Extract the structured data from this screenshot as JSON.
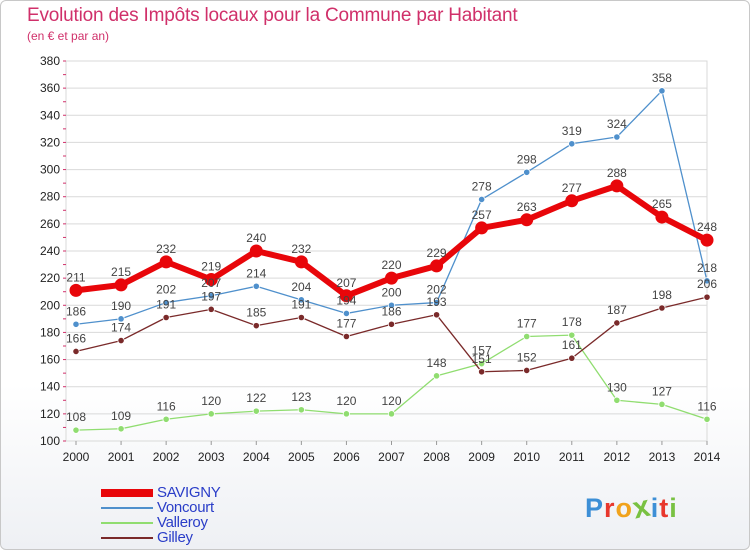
{
  "header": {
    "title": "Evolution des Impôts locaux pour la Commune par Habitant",
    "subtitle": "(en € et par an)"
  },
  "colors": {
    "title": "#d0306a",
    "legend_text": "#2a3dc8",
    "grid": "#d9d9d9",
    "axis_ticks": "#d0306a"
  },
  "chart_data": {
    "type": "line",
    "title": "Evolution des Impôts locaux pour la Commune par Habitant",
    "subtitle": "(en € et par an)",
    "xlabel": "",
    "ylabel": "",
    "x": [
      "2000",
      "2001",
      "2002",
      "2003",
      "2004",
      "2005",
      "2006",
      "2007",
      "2008",
      "2009",
      "2010",
      "2011",
      "2012",
      "2013",
      "2014"
    ],
    "ylim": [
      100,
      380
    ],
    "yticks": [
      100,
      120,
      140,
      160,
      180,
      200,
      220,
      240,
      260,
      280,
      300,
      320,
      340,
      360,
      380
    ],
    "grid": "horizontal",
    "legend_position": "bottom-left",
    "series": [
      {
        "name": "SAVIGNY",
        "color": "#e8060a",
        "values": [
          211,
          215,
          232,
          219,
          240,
          232,
          207,
          220,
          229,
          257,
          263,
          277,
          288,
          265,
          248
        ]
      },
      {
        "name": "Voncourt",
        "color": "#4f90cc",
        "values": [
          186,
          190,
          202,
          207,
          214,
          204,
          194,
          200,
          202,
          278,
          298,
          319,
          324,
          358,
          218
        ]
      },
      {
        "name": "Valleroy",
        "color": "#90dd70",
        "values": [
          108,
          109,
          116,
          120,
          122,
          123,
          120,
          120,
          148,
          157,
          177,
          178,
          130,
          127,
          116
        ]
      },
      {
        "name": "Gilley",
        "color": "#7a2a2a",
        "values": [
          166,
          174,
          191,
          197,
          185,
          191,
          177,
          186,
          193,
          151,
          152,
          161,
          187,
          198,
          206
        ]
      }
    ]
  },
  "branding": {
    "logo_letters": [
      "P",
      "r",
      "o",
      "x",
      "i",
      "t",
      "i"
    ],
    "logo_colors": [
      "#3d8fd6",
      "#e8372c",
      "#f1a31c",
      "#79c142",
      "#3d8fd6",
      "#e8372c",
      "#79c142"
    ]
  }
}
